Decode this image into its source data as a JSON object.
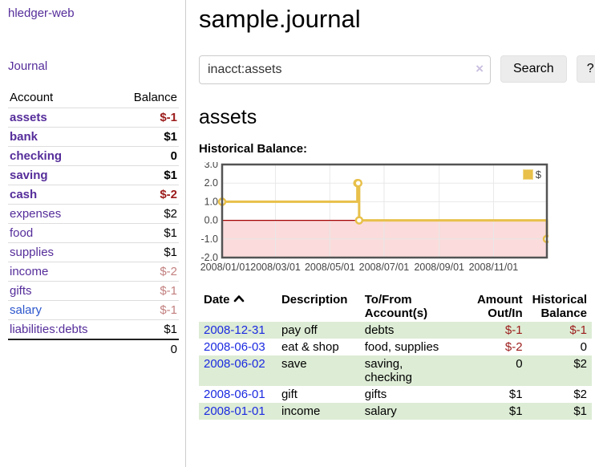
{
  "sidebar": {
    "app_title": "hledger-web",
    "journal_link": "Journal",
    "accounts": {
      "header_account": "Account",
      "header_balance": "Balance",
      "rows": [
        {
          "name": "assets",
          "balance": "$-1"
        },
        {
          "name": "bank",
          "balance": "$1"
        },
        {
          "name": "checking",
          "balance": "0"
        },
        {
          "name": "saving",
          "balance": "$1"
        },
        {
          "name": "cash",
          "balance": "$-2"
        },
        {
          "name": "expenses",
          "balance": "$2"
        },
        {
          "name": "food",
          "balance": "$1"
        },
        {
          "name": "supplies",
          "balance": "$1"
        },
        {
          "name": "income",
          "balance": "$-2"
        },
        {
          "name": "gifts",
          "balance": "$-1"
        },
        {
          "name": "salary",
          "balance": "$-1"
        },
        {
          "name": "liabilities:debts",
          "balance": "$1"
        }
      ],
      "total": "0"
    }
  },
  "main": {
    "title": "sample.journal",
    "search": {
      "value": "inacct:assets",
      "clear_icon": "×",
      "button": "Search",
      "help": "?"
    },
    "account_heading": "assets",
    "chart_heading": "Historical Balance:"
  },
  "chart_data": {
    "type": "line",
    "style": "steps",
    "title": "Historical Balance:",
    "series": [
      {
        "name": "$",
        "color": "#e8c04a",
        "points": [
          {
            "date": "2008/01/01",
            "value": 1
          },
          {
            "date": "2008/06/01",
            "value": 2
          },
          {
            "date": "2008/06/02",
            "value": 2
          },
          {
            "date": "2008/06/03",
            "value": 0
          },
          {
            "date": "2008/12/31",
            "value": -1
          }
        ]
      }
    ],
    "x_range": [
      "2008/01/01",
      "2008/12/31"
    ],
    "x_ticks": [
      "2008/01/01",
      "2008/03/01",
      "2008/05/01",
      "2008/07/01",
      "2008/09/01",
      "2008/11/01"
    ],
    "ylim": [
      -2,
      3
    ],
    "y_ticks": [
      3,
      2,
      1,
      0,
      -1,
      -2
    ],
    "y_tick_labels": [
      "3.0",
      "2.0",
      "1.0",
      "0.0",
      "-1.0",
      "-2.0"
    ],
    "legend_position": "top-right",
    "grid": true,
    "negative_region_color": "#fbdbdb",
    "zero_line_color": "#a40000",
    "grid_color": "#e8e8e8",
    "border_color": "#545454"
  },
  "register": {
    "headers": {
      "date": "Date",
      "sort_icon": "ascending-caret",
      "description": "Description",
      "accounts": "To/From\nAccount(s)",
      "amount": "Amount\nOut/In",
      "balance": "Historical\nBalance"
    },
    "rows": [
      {
        "date": "2008-12-31",
        "description": "pay off",
        "accounts": "debts",
        "amount": "$-1",
        "balance": "$-1"
      },
      {
        "date": "2008-06-03",
        "description": "eat & shop",
        "accounts": "food, supplies",
        "amount": "$-2",
        "balance": "0"
      },
      {
        "date": "2008-06-02",
        "description": "save",
        "accounts": "saving,\nchecking",
        "amount": "0",
        "balance": "$2"
      },
      {
        "date": "2008-06-01",
        "description": "gift",
        "accounts": "gifts",
        "amount": "$1",
        "balance": "$2"
      },
      {
        "date": "2008-01-01",
        "description": "income",
        "accounts": "salary",
        "amount": "$1",
        "balance": "$1"
      }
    ]
  },
  "colors": {
    "link_purple": "#552d9a",
    "link_blue": "#1b2ae0",
    "link_blue_light": "#2b55cc",
    "negative_strong": "#9c1b1b",
    "negative_muted": "#c38080",
    "row_stripe_green": "#ddecd5",
    "series_yellow": "#e8c04a"
  }
}
